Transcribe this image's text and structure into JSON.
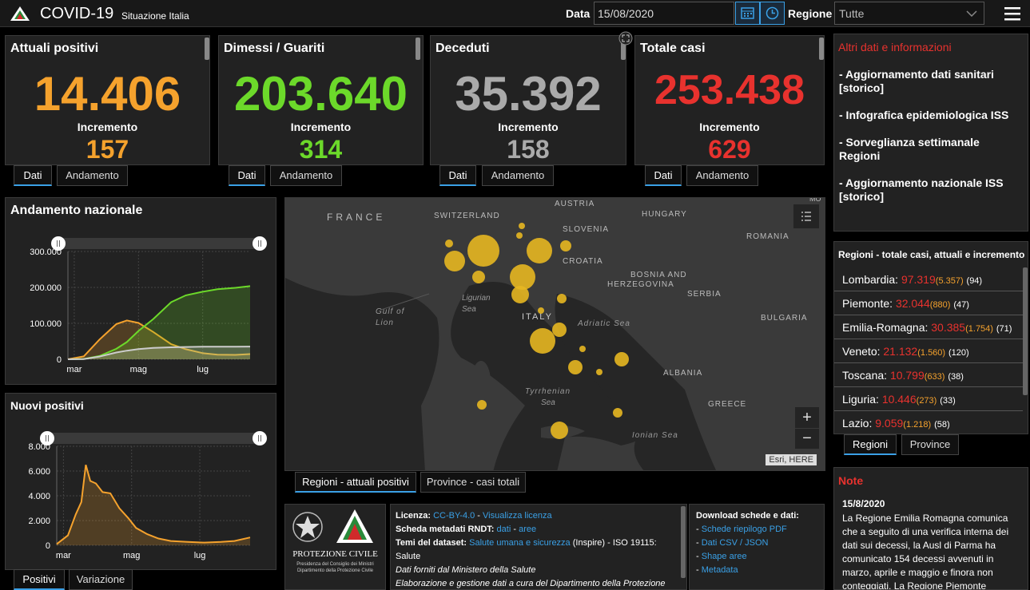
{
  "app": {
    "title": "COVID-19",
    "subtitle": "Situazione Italia"
  },
  "header": {
    "date_label": "Data",
    "date_value": "15/08/2020",
    "region_label": "Regione",
    "region_value": "Tutte"
  },
  "cards": [
    {
      "title": "Attuali positivi",
      "value": "14.406",
      "incr_label": "Incremento",
      "incr": "157",
      "color": "#f5a22d",
      "tab1": "Dati",
      "tab2": "Andamento"
    },
    {
      "title": "Dimessi / Guariti",
      "value": "203.640",
      "incr_label": "Incremento",
      "incr": "314",
      "color": "#6cd92a",
      "tab1": "Dati",
      "tab2": "Andamento"
    },
    {
      "title": "Deceduti",
      "value": "35.392",
      "incr_label": "Incremento",
      "incr": "158",
      "color": "#aaaaaa",
      "tab1": "Dati",
      "tab2": "Andamento"
    },
    {
      "title": "Totale casi",
      "value": "253.438",
      "incr_label": "Incremento",
      "incr": "629",
      "color": "#e8322e",
      "tab1": "Dati",
      "tab2": "Andamento"
    }
  ],
  "altri": {
    "title": "Altri dati e informazioni",
    "links": [
      "- Aggiornamento dati sanitari [storico]",
      "- Infografica epidemiologica ISS",
      "- Sorveglianza settimanale Regioni",
      "- Aggiornamento nazionale ISS [storico]"
    ]
  },
  "regioni": {
    "title": "Regioni - totale casi, attuali e incremento",
    "rows": [
      {
        "name": "Lombardia:",
        "total": "97.319",
        "attuali": "5.357",
        "incr": "(94)"
      },
      {
        "name": "Piemonte:",
        "total": "32.044",
        "attuali": "880",
        "incr": "(47)"
      },
      {
        "name": "Emilia-Romagna:",
        "total": "30.385",
        "attuali": "1.754",
        "incr": "(71)"
      },
      {
        "name": "Veneto:",
        "total": "21.132",
        "attuali": "1.560",
        "incr": "(120)"
      },
      {
        "name": "Toscana:",
        "total": "10.799",
        "attuali": "633",
        "incr": "(38)"
      },
      {
        "name": "Liguria:",
        "total": "10.446",
        "attuali": "273",
        "incr": "(33)"
      },
      {
        "name": "Lazio:",
        "total": "9.059",
        "attuali": "1.218",
        "incr": "(58)"
      }
    ],
    "tab1": "Regioni",
    "tab2": "Province"
  },
  "note": {
    "title": "Note",
    "date": "15/8/2020",
    "text": "La Regione Emilia Romagna comunica che a seguito di una verifica interna dei dati sui decessi, la Ausl di Parma ha comunicato 154 decessi avvenuti in marzo, aprile e maggio e finora non conteggiati. La Regione Piemonte"
  },
  "map": {
    "labels": [
      "FRANCE",
      "SWITZERLAND",
      "AUSTRIA",
      "HUNGARY",
      "SLOVENIA",
      "CROATIA",
      "ROMANIA",
      "BOSNIA AND",
      "HERZEGOVINA",
      "SERBIA",
      "BULGARIA",
      "ITALY",
      "Ligurian",
      "Sea",
      "Gulf of",
      "Lion",
      "Adriatic Sea",
      "ALBANIA",
      "Tyrrhenian",
      "Sea",
      "GREECE",
      "Ionian Sea",
      "MO"
    ],
    "attribution": "Esri, HERE",
    "zoom_in": "+",
    "zoom_out": "−",
    "tab1": "Regioni - attuali positivi",
    "tab2": "Province - casi totali"
  },
  "andamento": {
    "title": "Andamento nazionale",
    "tab1": "Positivi",
    "tab2": "Variazione"
  },
  "nuovi": {
    "title": "Nuovi positivi"
  },
  "chart_data": [
    {
      "type": "area",
      "title": "Andamento nazionale",
      "x_ticks": [
        "mar",
        "mag",
        "lug"
      ],
      "y_ticks": [
        "300.000",
        "200.000",
        "100.000",
        "0"
      ],
      "ylim": [
        0,
        300000
      ],
      "x": [
        "2020-02-24",
        "2020-03-10",
        "2020-03-25",
        "2020-04-10",
        "2020-04-20",
        "2020-05-01",
        "2020-05-15",
        "2020-06-01",
        "2020-06-15",
        "2020-07-01",
        "2020-07-15",
        "2020-08-01",
        "2020-08-15"
      ],
      "series": [
        {
          "color": "#f5a22d",
          "values": [
            0,
            8000,
            55000,
            98000,
            108000,
            101000,
            76000,
            42000,
            28000,
            17000,
            13000,
            12300,
            14406
          ]
        },
        {
          "color": "#6cd92a",
          "values": [
            0,
            1000,
            9000,
            29000,
            48000,
            79000,
            112000,
            159000,
            178000,
            188000,
            195000,
            199000,
            203640
          ]
        },
        {
          "color": "#cccccc",
          "values": [
            0,
            700,
            7500,
            18800,
            24000,
            28200,
            31500,
            33400,
            34300,
            34800,
            35000,
            35150,
            35392
          ]
        }
      ]
    },
    {
      "type": "area",
      "title": "Nuovi positivi",
      "x_ticks": [
        "mar",
        "mag",
        "lug"
      ],
      "y_ticks": [
        "8.000",
        "6.000",
        "4.000",
        "2.000",
        "0"
      ],
      "ylim": [
        0,
        8000
      ],
      "x": [
        "2020-02-24",
        "2020-03-05",
        "2020-03-12",
        "2020-03-17",
        "2020-03-21",
        "2020-03-25",
        "2020-03-30",
        "2020-04-05",
        "2020-04-12",
        "2020-04-20",
        "2020-04-28",
        "2020-05-05",
        "2020-05-15",
        "2020-05-25",
        "2020-06-05",
        "2020-06-20",
        "2020-07-05",
        "2020-07-20",
        "2020-08-01",
        "2020-08-15"
      ],
      "series": [
        {
          "color": "#f5a22d",
          "values": [
            100,
            800,
            2500,
            3500,
            6500,
            5200,
            5000,
            4300,
            4200,
            3000,
            2200,
            1400,
            900,
            550,
            350,
            280,
            220,
            270,
            350,
            630
          ]
        }
      ]
    }
  ],
  "footer": {
    "logo_text": "PROTEZIONE CIVILE",
    "logo_sub1": "Presidenza del Consiglio dei Ministri",
    "logo_sub2": "Dipartimento della Protezione Civile",
    "licenza_label": "Licenza:",
    "licenza_link1": "CC-BY-4.0",
    "licenza_link2": "Visualizza licenza",
    "scheda_label": "Scheda metadati RNDT:",
    "scheda_link1": "dati",
    "scheda_link2": "aree",
    "temi_label": "Temi del dataset:",
    "temi_link": "Salute umana e sicurezza",
    "temi_rest": "(Inspire) - ISO 19115:",
    "temi_rest2": "Salute",
    "dati_forniti": "Dati forniti dal Ministero della Salute",
    "elaborazione": "Elaborazione e gestione dati a cura del Dipartimento della Protezione",
    "download_title": "Download schede e dati:",
    "downloads": [
      "Schede riepilogo PDF",
      "Dati CSV / JSON",
      "Shape aree",
      "Metadata"
    ]
  }
}
